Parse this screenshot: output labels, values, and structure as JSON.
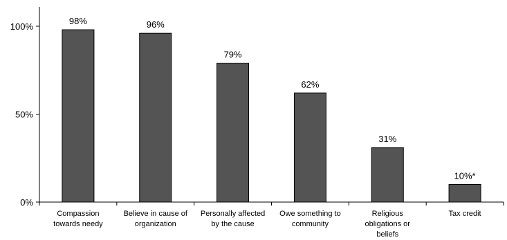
{
  "chart_data": {
    "type": "bar",
    "categories": [
      [
        "Compassion",
        "towards needy"
      ],
      [
        "Believe in cause of",
        "organization"
      ],
      [
        "Personally affected",
        "by the cause"
      ],
      [
        "Owe something to",
        "community"
      ],
      [
        "Religious",
        "obligations or",
        "beliefs"
      ],
      [
        "Tax credit"
      ]
    ],
    "values": [
      98,
      96,
      79,
      62,
      31,
      10
    ],
    "data_labels": [
      "98%",
      "96%",
      "79%",
      "62%",
      "31%",
      "10%*"
    ],
    "ylim": [
      0,
      100
    ],
    "yticks": [
      {
        "value": 0,
        "label": "0%"
      },
      {
        "value": 50,
        "label": "50%"
      },
      {
        "value": 100,
        "label": "100%"
      }
    ],
    "grid": false,
    "colors": {
      "bar": "#545454",
      "bar_stroke": "#000000",
      "axis": "#000000"
    }
  }
}
